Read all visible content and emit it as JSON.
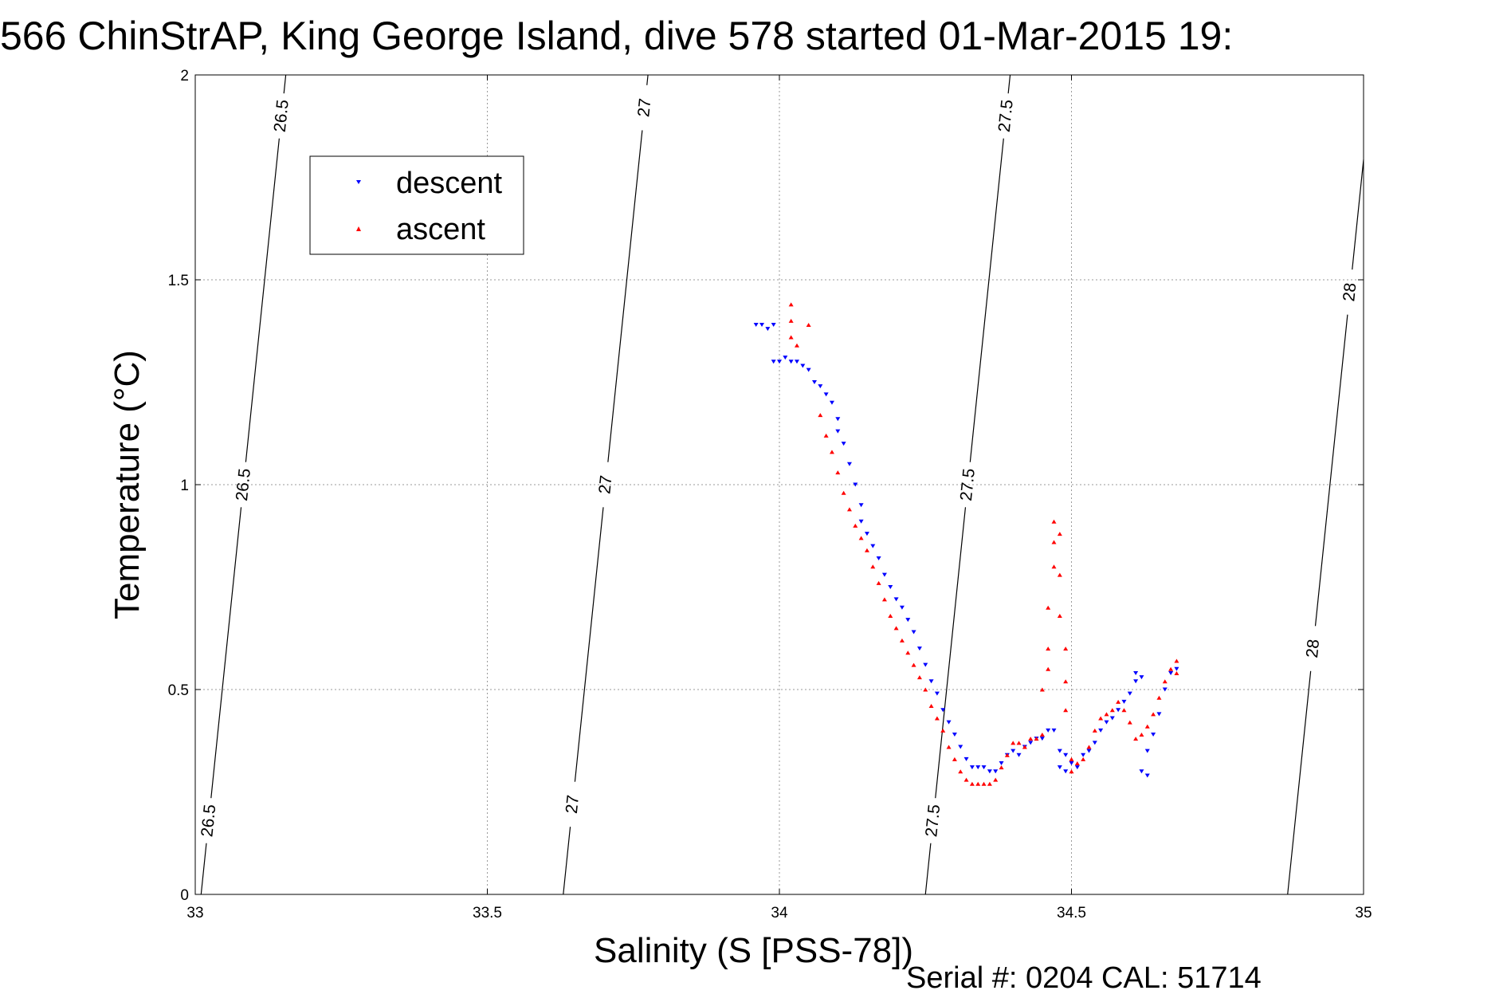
{
  "chart_data": {
    "type": "scatter",
    "title": "566 ChinStrAP, King George Island, dive 578 started 01-Mar-2015 19:",
    "xlabel": "Salinity (S [PSS-78])",
    "ylabel": "Temperature (°C)",
    "footer": "Serial #: 0204  CAL: 51714",
    "xlim": [
      33,
      35
    ],
    "ylim": [
      0,
      2
    ],
    "xticks": [
      33,
      33.5,
      34,
      34.5,
      35
    ],
    "xtick_labels": [
      "33",
      "33.5",
      "34",
      "34.5",
      "35"
    ],
    "yticks": [
      0,
      0.5,
      1,
      1.5,
      2
    ],
    "ytick_labels": [
      "0",
      "0.5",
      "1",
      "1.5",
      "2"
    ],
    "grid": true,
    "legend_position": "top-left",
    "isopycnals": [
      {
        "label": "26.5",
        "x_bottom": 33.01,
        "x_top": 33.155
      },
      {
        "label": "27",
        "x_bottom": 33.63,
        "x_top": 33.775
      },
      {
        "label": "27.5",
        "x_bottom": 34.25,
        "x_top": 34.395
      },
      {
        "label": "28",
        "x_bottom": 34.87,
        "x_top": 35.015
      }
    ],
    "isopycnal_label_y": {
      "26.5": [
        1.9,
        1.0,
        0.18
      ],
      "27": [
        1.92,
        1.0,
        0.22
      ],
      "27.5": [
        1.9,
        1.0,
        0.18
      ],
      "28": [
        1.47,
        0.6
      ]
    },
    "series": [
      {
        "name": "descent",
        "color": "#0000ff",
        "marker": "triangle-down",
        "points": [
          [
            33.96,
            1.39
          ],
          [
            33.97,
            1.39
          ],
          [
            33.98,
            1.38
          ],
          [
            33.99,
            1.39
          ],
          [
            33.99,
            1.3
          ],
          [
            34.0,
            1.3
          ],
          [
            34.01,
            1.31
          ],
          [
            34.02,
            1.3
          ],
          [
            34.03,
            1.3
          ],
          [
            34.04,
            1.29
          ],
          [
            34.05,
            1.28
          ],
          [
            34.06,
            1.25
          ],
          [
            34.07,
            1.24
          ],
          [
            34.08,
            1.22
          ],
          [
            34.09,
            1.2
          ],
          [
            34.1,
            1.16
          ],
          [
            34.1,
            1.13
          ],
          [
            34.11,
            1.1
          ],
          [
            34.12,
            1.05
          ],
          [
            34.13,
            1.0
          ],
          [
            34.14,
            0.95
          ],
          [
            34.14,
            0.91
          ],
          [
            34.15,
            0.88
          ],
          [
            34.16,
            0.85
          ],
          [
            34.17,
            0.82
          ],
          [
            34.18,
            0.78
          ],
          [
            34.19,
            0.75
          ],
          [
            34.2,
            0.72
          ],
          [
            34.21,
            0.7
          ],
          [
            34.22,
            0.67
          ],
          [
            34.23,
            0.64
          ],
          [
            34.24,
            0.6
          ],
          [
            34.25,
            0.56
          ],
          [
            34.26,
            0.52
          ],
          [
            34.27,
            0.49
          ],
          [
            34.28,
            0.45
          ],
          [
            34.29,
            0.42
          ],
          [
            34.3,
            0.39
          ],
          [
            34.31,
            0.36
          ],
          [
            34.32,
            0.33
          ],
          [
            34.33,
            0.31
          ],
          [
            34.34,
            0.31
          ],
          [
            34.35,
            0.31
          ],
          [
            34.36,
            0.3
          ],
          [
            34.37,
            0.3
          ],
          [
            34.38,
            0.32
          ],
          [
            34.39,
            0.34
          ],
          [
            34.4,
            0.35
          ],
          [
            34.41,
            0.34
          ],
          [
            34.42,
            0.36
          ],
          [
            34.43,
            0.37
          ],
          [
            34.44,
            0.38
          ],
          [
            34.45,
            0.38
          ],
          [
            34.46,
            0.4
          ],
          [
            34.47,
            0.4
          ],
          [
            34.48,
            0.35
          ],
          [
            34.48,
            0.31
          ],
          [
            34.49,
            0.3
          ],
          [
            34.49,
            0.34
          ],
          [
            34.5,
            0.32
          ],
          [
            34.51,
            0.31
          ],
          [
            34.52,
            0.34
          ],
          [
            34.53,
            0.35
          ],
          [
            34.54,
            0.37
          ],
          [
            34.55,
            0.4
          ],
          [
            34.56,
            0.42
          ],
          [
            34.57,
            0.43
          ],
          [
            34.58,
            0.45
          ],
          [
            34.59,
            0.47
          ],
          [
            34.6,
            0.49
          ],
          [
            34.61,
            0.52
          ],
          [
            34.61,
            0.54
          ],
          [
            34.62,
            0.53
          ],
          [
            34.62,
            0.3
          ],
          [
            34.63,
            0.29
          ],
          [
            34.63,
            0.35
          ],
          [
            34.64,
            0.39
          ],
          [
            34.65,
            0.44
          ],
          [
            34.66,
            0.5
          ],
          [
            34.67,
            0.54
          ],
          [
            34.68,
            0.55
          ]
        ]
      },
      {
        "name": "ascent",
        "color": "#ff0000",
        "marker": "triangle-up",
        "points": [
          [
            34.02,
            1.44
          ],
          [
            34.02,
            1.4
          ],
          [
            34.02,
            1.36
          ],
          [
            34.03,
            1.34
          ],
          [
            34.05,
            1.39
          ],
          [
            34.07,
            1.17
          ],
          [
            34.08,
            1.12
          ],
          [
            34.09,
            1.08
          ],
          [
            34.1,
            1.03
          ],
          [
            34.11,
            0.98
          ],
          [
            34.12,
            0.94
          ],
          [
            34.13,
            0.9
          ],
          [
            34.14,
            0.87
          ],
          [
            34.15,
            0.84
          ],
          [
            34.16,
            0.8
          ],
          [
            34.17,
            0.76
          ],
          [
            34.18,
            0.72
          ],
          [
            34.19,
            0.68
          ],
          [
            34.2,
            0.65
          ],
          [
            34.21,
            0.62
          ],
          [
            34.22,
            0.59
          ],
          [
            34.23,
            0.56
          ],
          [
            34.24,
            0.53
          ],
          [
            34.25,
            0.5
          ],
          [
            34.26,
            0.46
          ],
          [
            34.27,
            0.43
          ],
          [
            34.28,
            0.4
          ],
          [
            34.29,
            0.36
          ],
          [
            34.3,
            0.33
          ],
          [
            34.31,
            0.3
          ],
          [
            34.32,
            0.28
          ],
          [
            34.33,
            0.27
          ],
          [
            34.34,
            0.27
          ],
          [
            34.35,
            0.27
          ],
          [
            34.36,
            0.27
          ],
          [
            34.37,
            0.28
          ],
          [
            34.38,
            0.31
          ],
          [
            34.39,
            0.34
          ],
          [
            34.4,
            0.37
          ],
          [
            34.41,
            0.37
          ],
          [
            34.42,
            0.36
          ],
          [
            34.43,
            0.38
          ],
          [
            34.44,
            0.38
          ],
          [
            34.45,
            0.39
          ],
          [
            34.45,
            0.5
          ],
          [
            34.46,
            0.55
          ],
          [
            34.46,
            0.6
          ],
          [
            34.46,
            0.7
          ],
          [
            34.47,
            0.8
          ],
          [
            34.47,
            0.86
          ],
          [
            34.47,
            0.91
          ],
          [
            34.48,
            0.88
          ],
          [
            34.48,
            0.78
          ],
          [
            34.48,
            0.68
          ],
          [
            34.49,
            0.6
          ],
          [
            34.49,
            0.52
          ],
          [
            34.49,
            0.45
          ],
          [
            34.5,
            0.33
          ],
          [
            34.5,
            0.3
          ],
          [
            34.51,
            0.32
          ],
          [
            34.52,
            0.33
          ],
          [
            34.53,
            0.36
          ],
          [
            34.54,
            0.4
          ],
          [
            34.55,
            0.43
          ],
          [
            34.56,
            0.44
          ],
          [
            34.57,
            0.45
          ],
          [
            34.58,
            0.47
          ],
          [
            34.59,
            0.45
          ],
          [
            34.6,
            0.42
          ],
          [
            34.61,
            0.38
          ],
          [
            34.62,
            0.39
          ],
          [
            34.63,
            0.41
          ],
          [
            34.64,
            0.44
          ],
          [
            34.65,
            0.48
          ],
          [
            34.66,
            0.52
          ],
          [
            34.67,
            0.55
          ],
          [
            34.68,
            0.57
          ],
          [
            34.68,
            0.54
          ]
        ]
      }
    ]
  }
}
